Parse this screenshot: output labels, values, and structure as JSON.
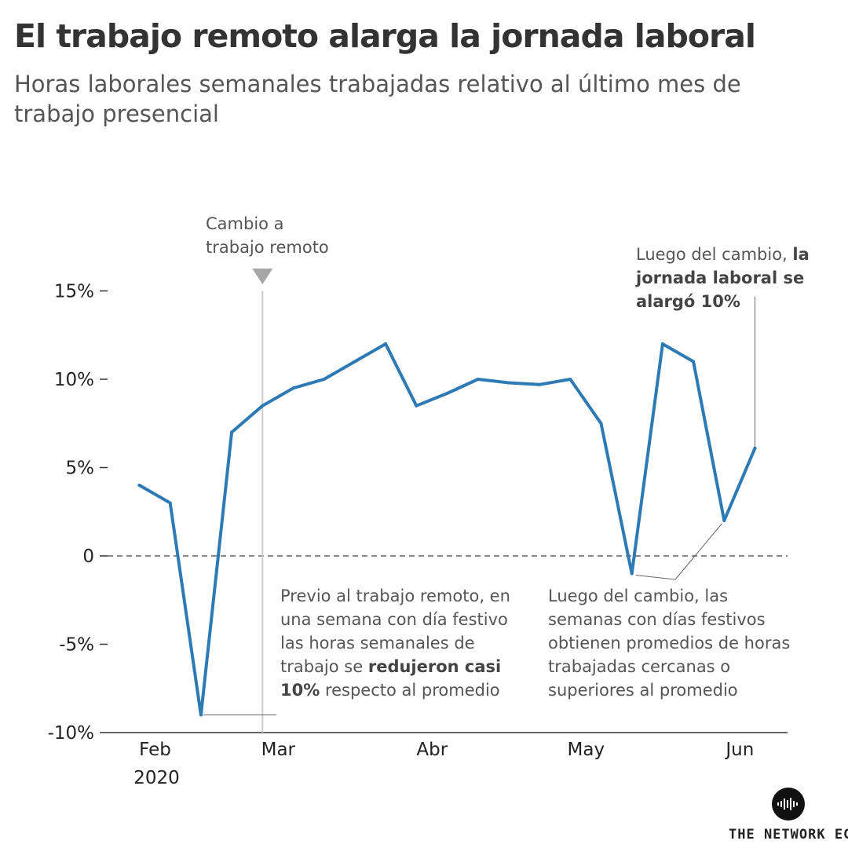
{
  "title": "El trabajo remoto alarga la jornada laboral",
  "subtitle": "Horas laborales semanales trabajadas relativo al último mes de trabajo presencial",
  "annotations": {
    "switch_line1": "Cambio a",
    "switch_line2": "trabajo remoto",
    "end_pre": "Luego del cambio, ",
    "end_bold": "la jornada laboral se alargó 10%",
    "holiday_before_pre": "Previo al trabajo remoto, en una semana con día festivo las horas semanales de trabajo se ",
    "holiday_before_bold": "redujeron casi 10%",
    "holiday_before_post": " respecto al promedio",
    "holiday_after": "Luego del cambio, las semanas con días festivos obtienen promedios de horas trabajadas cercanas o superiores al promedio"
  },
  "brand": "THE NETWORK EC.",
  "colors": {
    "line": "#2e7ab5",
    "axis": "#333333",
    "zero": "#888888",
    "marker": "#a6a6a6",
    "text": "#555555"
  },
  "chart_data": {
    "type": "line",
    "title": "El trabajo remoto alarga la jornada laboral",
    "subtitle": "Horas laborales semanales trabajadas relativo al último mes de trabajo presencial",
    "x_unit": "week",
    "x_ticks": [
      {
        "label": "Feb",
        "sublabel": "2020",
        "x": 0
      },
      {
        "label": "Mar",
        "x": 4
      },
      {
        "label": "Abr",
        "x": 9
      },
      {
        "label": "May",
        "x": 14
      },
      {
        "label": "Jun",
        "x": 19
      }
    ],
    "y_ticks": [
      {
        "label": "15%",
        "y": 15
      },
      {
        "label": "10%",
        "y": 10
      },
      {
        "label": "5%",
        "y": 5
      },
      {
        "label": "0",
        "y": 0
      },
      {
        "label": "-5%",
        "y": -5
      },
      {
        "label": "-10%",
        "y": -10
      }
    ],
    "ylim": [
      -10,
      15
    ],
    "xlim": [
      -1,
      21
    ],
    "remote_switch_x": 4,
    "series": [
      {
        "x": [
          0,
          1,
          2,
          3,
          4,
          5,
          6,
          7,
          8,
          9,
          10,
          11,
          12,
          13,
          14,
          15,
          16,
          17,
          18,
          19,
          20
        ],
        "y": [
          4,
          3,
          -9,
          7,
          8.5,
          9.5,
          10,
          11,
          12,
          8.5,
          9.2,
          10,
          9.8,
          9.7,
          10,
          7.5,
          -1,
          12,
          11,
          2,
          6.1
        ]
      }
    ]
  }
}
